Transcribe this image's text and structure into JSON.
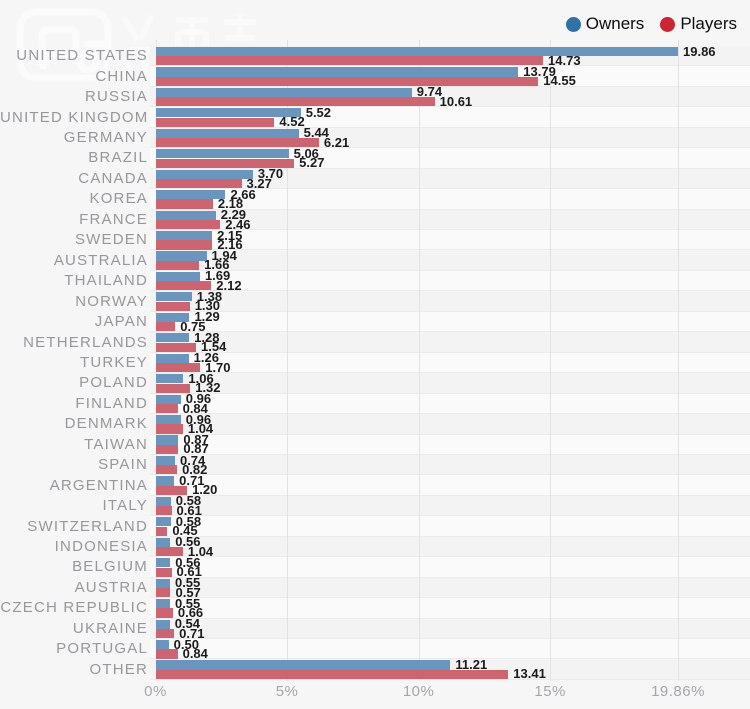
{
  "legend": {
    "items": [
      {
        "label": "Owners",
        "color": "#2e72a8"
      },
      {
        "label": "Players",
        "color": "#cc2531"
      }
    ]
  },
  "watermark": {
    "icon": "game-media-logo"
  },
  "chart_data": {
    "type": "bar",
    "orientation": "horizontal",
    "title": "",
    "xlabel": "",
    "ylabel": "",
    "xlim": [
      0,
      19.86
    ],
    "grid": true,
    "legend_position": "top-right",
    "categories": [
      "UNITED STATES",
      "CHINA",
      "RUSSIA",
      "UNITED KINGDOM",
      "GERMANY",
      "BRAZIL",
      "CANADA",
      "KOREA",
      "FRANCE",
      "SWEDEN",
      "AUSTRALIA",
      "THAILAND",
      "NORWAY",
      "JAPAN",
      "NETHERLANDS",
      "TURKEY",
      "POLAND",
      "FINLAND",
      "DENMARK",
      "TAIWAN",
      "SPAIN",
      "ARGENTINA",
      "ITALY",
      "SWITZERLAND",
      "INDONESIA",
      "BELGIUM",
      "AUSTRIA",
      "CZECH REPUBLIC",
      "UKRAINE",
      "PORTUGAL",
      "OTHER"
    ],
    "series": [
      {
        "name": "Owners",
        "color": "#6996be",
        "values": [
          19.86,
          13.79,
          9.74,
          5.52,
          5.44,
          5.06,
          3.7,
          2.66,
          2.29,
          2.15,
          1.94,
          1.69,
          1.38,
          1.29,
          1.28,
          1.26,
          1.06,
          0.96,
          0.96,
          0.87,
          0.74,
          0.71,
          0.58,
          0.58,
          0.56,
          0.56,
          0.55,
          0.55,
          0.54,
          0.5,
          11.21
        ]
      },
      {
        "name": "Players",
        "color": "#ce6470",
        "values": [
          14.73,
          14.55,
          10.61,
          4.52,
          6.21,
          5.27,
          3.27,
          2.18,
          2.46,
          2.16,
          1.66,
          2.12,
          1.3,
          0.75,
          1.54,
          1.7,
          1.32,
          0.84,
          1.04,
          0.87,
          0.82,
          1.2,
          0.61,
          0.45,
          1.04,
          0.61,
          0.57,
          0.66,
          0.71,
          0.84,
          13.41
        ]
      }
    ],
    "x_ticks": [
      {
        "value": 0,
        "label": "0%"
      },
      {
        "value": 5,
        "label": "5%"
      },
      {
        "value": 10,
        "label": "10%"
      },
      {
        "value": 15,
        "label": "15%"
      },
      {
        "value": 19.86,
        "label": "19.86%"
      }
    ],
    "value_labels": true
  }
}
